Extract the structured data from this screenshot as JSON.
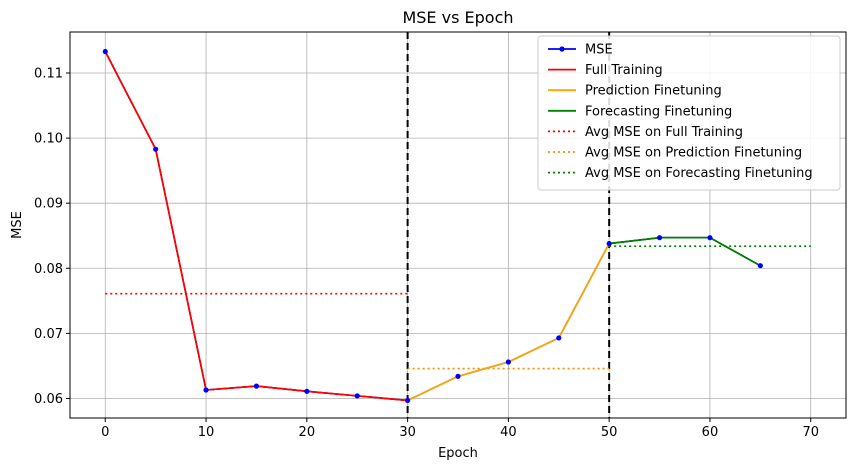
{
  "chart_data": {
    "type": "line",
    "title": "MSE vs Epoch",
    "xlabel": "Epoch",
    "ylabel": "MSE",
    "xlim": [
      -3.5,
      73.5
    ],
    "ylim": [
      0.057,
      0.1163
    ],
    "xticks": [
      0,
      10,
      20,
      30,
      40,
      50,
      60,
      70
    ],
    "yticks": [
      0.06,
      0.07,
      0.08,
      0.09,
      0.1,
      0.11
    ],
    "ytick_labels": [
      "0.06",
      "0.07",
      "0.08",
      "0.09",
      "0.10",
      "0.11"
    ],
    "grid": true,
    "legend_position": "top-right",
    "vlines": [
      30,
      50
    ],
    "series": [
      {
        "name": "MSE",
        "color": "#0000ff",
        "style": "line-marker",
        "x": [
          0,
          5,
          10,
          15,
          20,
          25,
          30,
          35,
          40,
          45,
          50,
          55,
          60,
          65
        ],
        "y": [
          0.1133,
          0.0983,
          0.0613,
          0.0619,
          0.0611,
          0.0604,
          0.0597,
          0.0634,
          0.0656,
          0.0693,
          0.0838,
          0.0847,
          0.0847,
          0.0804
        ]
      },
      {
        "name": "Full Training",
        "color": "#ff0000",
        "style": "solid",
        "x": [
          0,
          5,
          10,
          15,
          20,
          25,
          30
        ],
        "y": [
          0.1133,
          0.0983,
          0.0613,
          0.0619,
          0.0611,
          0.0604,
          0.0597
        ]
      },
      {
        "name": "Prediction Finetuning",
        "color": "#ffa500",
        "style": "solid",
        "x": [
          30,
          35,
          40,
          45,
          50
        ],
        "y": [
          0.0597,
          0.0634,
          0.0656,
          0.0693,
          0.0838
        ]
      },
      {
        "name": "Forecasting Finetuning",
        "color": "#008000",
        "style": "solid",
        "x": [
          50,
          55,
          60,
          65
        ],
        "y": [
          0.0838,
          0.0847,
          0.0847,
          0.0804
        ]
      },
      {
        "name": "Avg MSE on Full Training",
        "color": "#ff0000",
        "style": "dotted",
        "x": [
          0,
          30
        ],
        "y": [
          0.0761,
          0.0761
        ]
      },
      {
        "name": "Avg MSE on Prediction Finetuning",
        "color": "#ff8c00",
        "style": "dotted",
        "x": [
          30,
          50
        ],
        "y": [
          0.0646,
          0.0646
        ]
      },
      {
        "name": "Avg MSE on Forecasting Finetuning",
        "color": "#008000",
        "style": "dotted",
        "x": [
          50,
          70
        ],
        "y": [
          0.0834,
          0.0834
        ]
      }
    ]
  }
}
